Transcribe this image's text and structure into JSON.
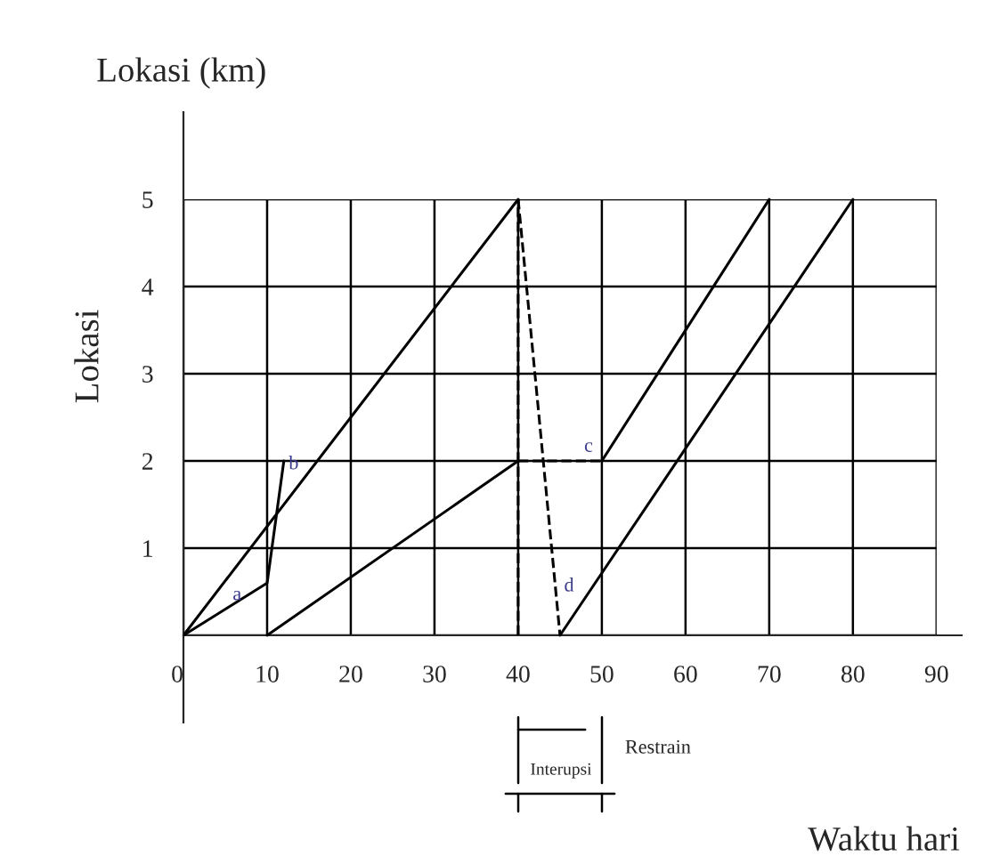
{
  "chart_data": {
    "type": "line",
    "xlabel": "Waktu hari",
    "ylabel": "Lokasi",
    "xlim": [
      0,
      93
    ],
    "ylim": [
      -1,
      6
    ],
    "xticks": [
      {
        "value": 0,
        "label": "0"
      },
      10,
      20,
      30,
      40,
      50,
      60,
      70,
      80,
      90
    ],
    "yticks": [
      {
        "value": 0,
        "label": null
      },
      1,
      2,
      3,
      4,
      5
    ],
    "grid": true,
    "legend": false,
    "marker": "none",
    "series": [
      {
        "color": "#000000",
        "line_style": "solid",
        "x": [
          0,
          40
        ],
        "values": [
          0,
          5
        ]
      },
      {
        "color": "#000000",
        "line_style": "solid",
        "x": [
          0,
          10,
          12
        ],
        "values": [
          0,
          0.6,
          2
        ]
      },
      {
        "color": "#000000",
        "line_style": "solid",
        "x": [
          10,
          40
        ],
        "values": [
          0,
          2
        ]
      },
      {
        "color": "#000000",
        "line_style": "dashed",
        "x": [
          40,
          50
        ],
        "values": [
          2,
          2
        ]
      },
      {
        "color": "#000000",
        "line_style": "solid",
        "x": [
          50,
          70
        ],
        "values": [
          2,
          5
        ]
      },
      {
        "color": "#000000",
        "line_style": "dashed",
        "x": [
          40,
          40
        ],
        "values": [
          0,
          5
        ]
      },
      {
        "color": "#000000",
        "line_style": "dashed",
        "x": [
          40,
          45
        ],
        "values": [
          5,
          0
        ]
      },
      {
        "color": "#000000",
        "line_style": "solid",
        "x": [
          45,
          80
        ],
        "values": [
          0,
          5
        ]
      }
    ],
    "annotations": [
      "Lokasi (km)",
      {
        "text": "a",
        "x": 5,
        "y": 0.3
      },
      {
        "text": "b",
        "x": 11.7,
        "y": 1.8
      },
      {
        "text": "c",
        "x": 47,
        "y": 2
      },
      {
        "text": "d",
        "x": 44.6,
        "y": 0.4
      },
      "Interupsi",
      "Restrain"
    ]
  }
}
